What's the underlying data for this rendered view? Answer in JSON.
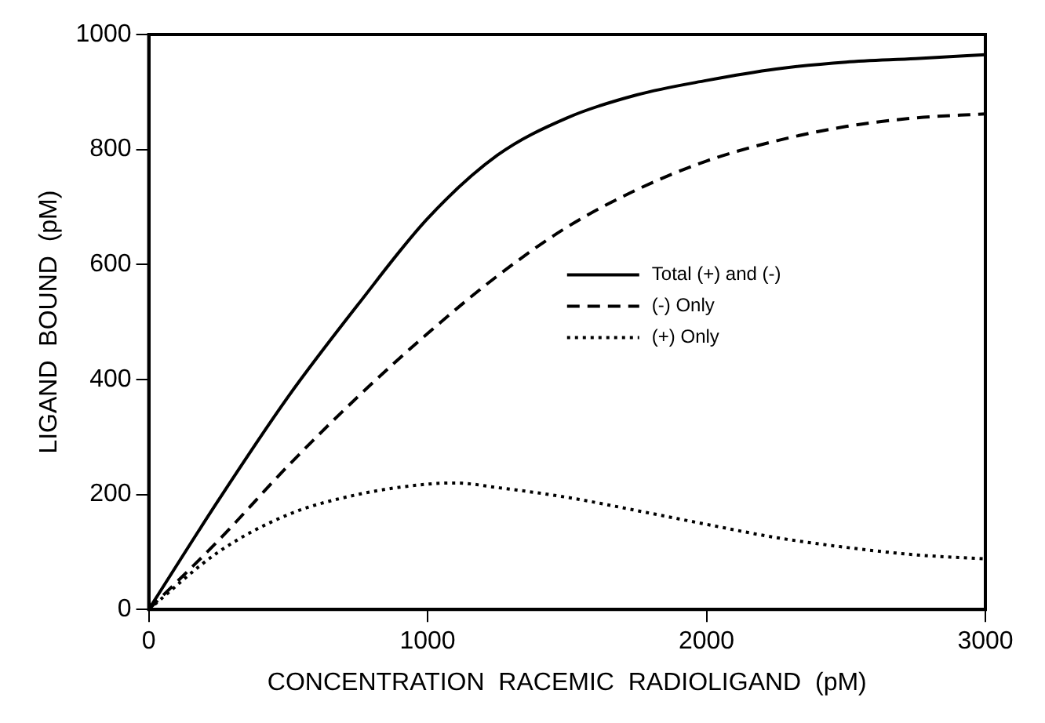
{
  "chart_data": {
    "type": "line",
    "xlabel": "CONCENTRATION  RACEMIC  RADIOLIGAND  (pM)",
    "ylabel": "LIGAND  BOUND  (pM)",
    "xlim": [
      0,
      3000
    ],
    "xticks": [
      0,
      1000,
      2000,
      3000
    ],
    "ylim": [
      0,
      1000
    ],
    "yticks": [
      0,
      200,
      400,
      600,
      800,
      1000
    ],
    "grid": false,
    "legend": "right",
    "marker": "none",
    "series": [
      {
        "name": "Total (+) and (-)",
        "color": "#000000",
        "line_style": "solid",
        "x": [
          0,
          250,
          500,
          750,
          1000,
          1250,
          1500,
          1750,
          2000,
          2250,
          2500,
          2750,
          3000
        ],
        "values": [
          0,
          190,
          370,
          530,
          680,
          790,
          855,
          895,
          920,
          940,
          952,
          958,
          965
        ]
      },
      {
        "name": "(-) Only",
        "color": "#000000",
        "line_style": "dashed",
        "x": [
          0,
          250,
          500,
          750,
          1000,
          1250,
          1500,
          1750,
          2000,
          2250,
          2500,
          2750,
          3000
        ],
        "values": [
          0,
          120,
          250,
          370,
          480,
          580,
          665,
          730,
          780,
          815,
          840,
          855,
          862
        ]
      },
      {
        "name": "(+) Only",
        "color": "#000000",
        "line_style": "dotted",
        "x": [
          0,
          250,
          500,
          750,
          1000,
          1100,
          1250,
          1500,
          1750,
          2000,
          2250,
          2500,
          2750,
          3000
        ],
        "values": [
          0,
          100,
          165,
          200,
          218,
          220,
          212,
          195,
          172,
          148,
          125,
          108,
          95,
          88
        ]
      }
    ]
  }
}
